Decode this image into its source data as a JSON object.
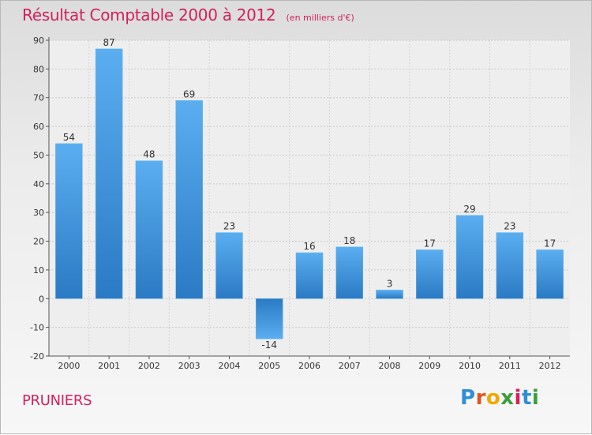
{
  "chart_data": {
    "type": "bar",
    "title": "Résultat Comptable 2000 à 2012",
    "subtitle": "(en milliers d'€)",
    "categories": [
      "2000",
      "2001",
      "2002",
      "2003",
      "2004",
      "2005",
      "2006",
      "2007",
      "2008",
      "2009",
      "2010",
      "2011",
      "2012"
    ],
    "values": [
      54,
      87,
      48,
      69,
      23,
      -14,
      16,
      18,
      3,
      17,
      29,
      23,
      17
    ],
    "value_labels": [
      "54",
      "87",
      "48",
      "69",
      "23",
      "-14",
      "16",
      "18",
      "3",
      "17",
      "29",
      "23",
      "17"
    ],
    "ylim": [
      -20,
      90
    ],
    "yticks": [
      "-20",
      "-10",
      "0",
      "10",
      "20",
      "30",
      "40",
      "50",
      "60",
      "70",
      "80",
      "90"
    ],
    "xlabel": "",
    "ylabel": "",
    "grid": true,
    "bar_color_light": "#5aaef0",
    "bar_color_dark": "#2b7ac4"
  },
  "commune": "PRUNIERS",
  "logo": {
    "letters": [
      "P",
      "r",
      "o",
      "x",
      "i",
      "t",
      "i"
    ],
    "colors": [
      "#2e8fd6",
      "#e0551c",
      "#f0a800",
      "#3a9e3a",
      "#d2215f",
      "#2e8fd6",
      "#3a9e3a"
    ]
  }
}
